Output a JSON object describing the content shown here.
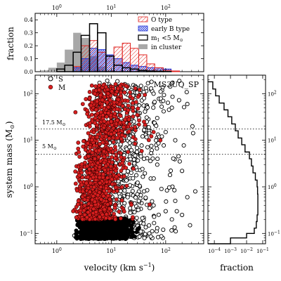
{
  "figure": {
    "top_panel": {
      "ylabel": "fraction",
      "xlabel": "",
      "xscale": "log",
      "xlim": [
        0.4,
        500
      ],
      "ylim": [
        0,
        0.45
      ],
      "yticks": [
        "0.0",
        "0.1",
        "0.2",
        "0.3",
        "0.4"
      ],
      "xticks_top": [
        {
          "base": "10",
          "exp": "0"
        },
        {
          "base": "10",
          "exp": "1"
        },
        {
          "base": "10",
          "exp": "2"
        }
      ],
      "legend": [
        {
          "label": "O type",
          "style": "red-hatched",
          "color": "#e0221e"
        },
        {
          "label": "early B type",
          "style": "blue-crosshatch",
          "color": "#1b2fd8"
        },
        {
          "label": "m1 <5 M⊙",
          "label_main": "m",
          "label_sub": "1",
          "label_rest": " <5 M",
          "label_sun": "⊙",
          "style": "black-step",
          "color": "#000000"
        },
        {
          "label": "in cluster",
          "style": "gray-fill",
          "color": "#a8a8a8"
        }
      ]
    },
    "main_panel": {
      "title": "MS3UQ_SP",
      "xlabel": {
        "text": "velocity (km s",
        "sup": "−1",
        "close": ")"
      },
      "ylabel": {
        "text": "system mass (M",
        "sun": "⊙",
        "close": ")"
      },
      "xscale": "log",
      "yscale": "log",
      "xlim": [
        0.4,
        500
      ],
      "ylim": [
        0.06,
        250
      ],
      "xticks": [
        {
          "base": "10",
          "exp": "0"
        },
        {
          "base": "10",
          "exp": "1"
        },
        {
          "base": "10",
          "exp": "2"
        }
      ],
      "yticks": [
        {
          "base": "10",
          "exp": "−1"
        },
        {
          "base": "10",
          "exp": "0"
        },
        {
          "base": "10",
          "exp": "1"
        },
        {
          "base": "10",
          "exp": "2"
        }
      ],
      "legend": [
        {
          "key": "S",
          "label": "S",
          "style": "open-circle",
          "color": "#000000"
        },
        {
          "key": "M",
          "label": "M",
          "style": "filled-red",
          "color": "#d81f1f"
        }
      ],
      "reference_lines": [
        {
          "value": 17.5,
          "label": "17.5 M",
          "sun": "⊙",
          "style": "dotted"
        },
        {
          "value": 5,
          "label": "5 M",
          "sun": "⊙",
          "style": "dotted"
        }
      ]
    },
    "right_panel": {
      "xlabel": "fraction",
      "xscale": "log",
      "yscale": "log",
      "xlim": [
        4e-05,
        0.15
      ],
      "xticks": [
        {
          "base": "10",
          "exp": "−4"
        },
        {
          "base": "10",
          "exp": "−3"
        },
        {
          "base": "10",
          "exp": "−2"
        },
        {
          "base": "10",
          "exp": "−1"
        }
      ],
      "yticks": [
        {
          "base": "10",
          "exp": "−1"
        },
        {
          "base": "10",
          "exp": "0"
        },
        {
          "base": "10",
          "exp": "1"
        },
        {
          "base": "10",
          "exp": "2"
        }
      ]
    }
  },
  "chart_data": [
    {
      "type": "histogram",
      "panel": "top",
      "x_scale": "log",
      "bin_edges": [
        0.5,
        0.7,
        1.0,
        1.4,
        2.0,
        2.8,
        4.0,
        5.6,
        8.0,
        11.2,
        16.0,
        22.4,
        32.0,
        45.0,
        63.0,
        90.0,
        126.0,
        180.0,
        250.0
      ],
      "series": [
        {
          "name": "O type",
          "values": [
            0,
            0,
            0,
            0,
            0.04,
            0.2,
            0.24,
            0.15,
            0.12,
            0.19,
            0.22,
            0.18,
            0.13,
            0.06,
            0.03,
            0.01,
            0.005,
            0
          ]
        },
        {
          "name": "early B type",
          "values": [
            0,
            0,
            0,
            0,
            0.03,
            0.1,
            0.18,
            0.17,
            0.13,
            0.1,
            0.07,
            0.05,
            0.04,
            0.03,
            0.03,
            0.02,
            0.005,
            0
          ]
        },
        {
          "name": "m1 <5 M⊙",
          "values": [
            0,
            0,
            0.02,
            0.05,
            0.15,
            0.28,
            0.37,
            0.3,
            0.12,
            0.05,
            0.03,
            0.02,
            0.01,
            0.005,
            0.003,
            0.001,
            0,
            0
          ]
        },
        {
          "name": "in cluster",
          "values": [
            0.01,
            0.03,
            0.07,
            0.17,
            0.3,
            0.26,
            0.12,
            0.04,
            0.01,
            0,
            0,
            0,
            0,
            0,
            0,
            0,
            0,
            0
          ]
        }
      ]
    },
    {
      "type": "scatter",
      "panel": "main",
      "x_scale": "log",
      "y_scale": "log",
      "series": [
        {
          "name": "S",
          "points": [
            [
              2.1,
              0.09
            ],
            [
              3.0,
              0.12
            ],
            [
              4.5,
              0.15
            ],
            [
              6.0,
              0.1
            ],
            [
              8.0,
              0.2
            ],
            [
              12,
              0.12
            ],
            [
              18,
              0.1
            ],
            [
              25,
              0.14
            ],
            [
              35,
              0.11
            ],
            [
              50,
              0.1
            ],
            [
              70,
              0.13
            ],
            [
              90,
              0.12
            ],
            [
              130,
              0.2
            ],
            [
              160,
              0.3
            ],
            [
              200,
              0.25
            ],
            [
              3.5,
              0.5
            ],
            [
              6,
              0.7
            ],
            [
              10,
              0.5
            ],
            [
              20,
              0.6
            ],
            [
              40,
              0.8
            ],
            [
              60,
              0.4
            ],
            [
              100,
              0.3
            ],
            [
              150,
              0.5
            ],
            [
              250,
              0.6
            ],
            [
              5,
              2
            ],
            [
              8,
              3
            ],
            [
              15,
              1.5
            ],
            [
              25,
              2.5
            ],
            [
              40,
              4
            ],
            [
              70,
              3
            ],
            [
              120,
              1.8
            ],
            [
              200,
              2.2
            ],
            [
              6,
              8
            ],
            [
              10,
              12
            ],
            [
              18,
              15
            ],
            [
              30,
              20
            ],
            [
              45,
              25
            ],
            [
              70,
              30
            ],
            [
              100,
              15
            ],
            [
              150,
              10
            ],
            [
              8,
              40
            ],
            [
              15,
              60
            ],
            [
              25,
              50
            ],
            [
              40,
              80
            ],
            [
              60,
              100
            ],
            [
              90,
              70
            ],
            [
              130,
              50
            ],
            [
              12,
              130
            ],
            [
              20,
              150
            ],
            [
              35,
              120
            ],
            [
              55,
              180
            ],
            [
              250,
              60
            ],
            [
              310,
              20
            ],
            [
              350,
              0.8
            ],
            [
              280,
              0.15
            ]
          ]
        },
        {
          "name": "M",
          "points": [
            [
              2.0,
              0.3
            ],
            [
              2.5,
              0.5
            ],
            [
              3.0,
              0.8
            ],
            [
              3.5,
              1.2
            ],
            [
              4.0,
              2.0
            ],
            [
              4.5,
              3.0
            ],
            [
              5.0,
              4.0
            ],
            [
              6.0,
              6.0
            ],
            [
              7.0,
              9.0
            ],
            [
              8.0,
              12
            ],
            [
              9.0,
              18
            ],
            [
              10,
              25
            ],
            [
              2.2,
              40
            ],
            [
              3.0,
              60
            ],
            [
              4.0,
              80
            ],
            [
              5.0,
              100
            ],
            [
              6.0,
              120
            ],
            [
              8.0,
              140
            ],
            [
              12,
              160
            ],
            [
              15,
              90
            ],
            [
              20,
              70
            ],
            [
              25,
              50
            ],
            [
              30,
              35
            ],
            [
              40,
              25
            ],
            [
              60,
              15
            ],
            [
              80,
              10
            ]
          ]
        }
      ],
      "reference_lines": [
        17.5,
        5
      ]
    },
    {
      "type": "histogram",
      "panel": "right",
      "orientation": "horizontal",
      "x_scale": "log",
      "y_scale": "log",
      "bin_edges": [
        0.06,
        0.08,
        0.1,
        0.13,
        0.18,
        0.25,
        0.35,
        0.5,
        0.7,
        1.0,
        1.4,
        2.0,
        2.8,
        4.0,
        5.6,
        8.0,
        11.2,
        16,
        22.4,
        32,
        45,
        63,
        90,
        126,
        180
      ],
      "values": [
        0.001,
        0.01,
        0.03,
        0.04,
        0.045,
        0.05,
        0.05,
        0.05,
        0.048,
        0.045,
        0.035,
        0.025,
        0.02,
        0.015,
        0.008,
        0.005,
        0.003,
        0.002,
        0.0012,
        0.0007,
        0.0004,
        0.0002,
        0.00012,
        8e-05
      ]
    }
  ]
}
